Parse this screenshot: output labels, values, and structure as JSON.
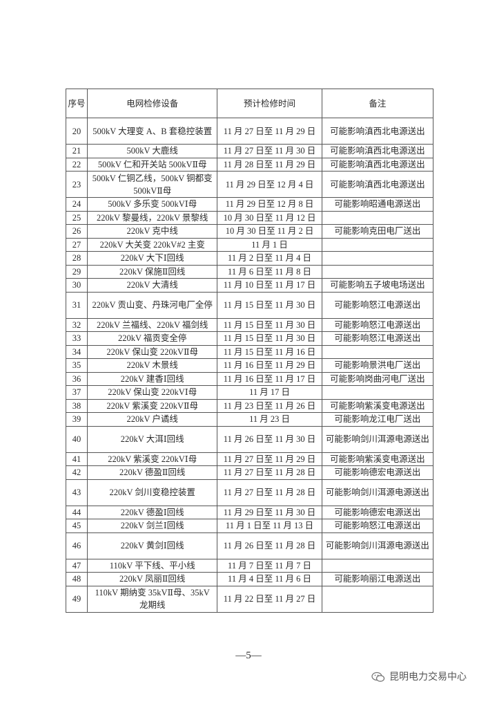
{
  "table": {
    "headers": [
      "序号",
      "电网检修设备",
      "预计检修时间",
      "备注"
    ],
    "rows": [
      {
        "no": "20",
        "device": "500kV 大理变 A、B 套稳控装置",
        "time": "11 月 27 日至 11 月 29 日",
        "note": "可能影响滇西北电源送出",
        "tall": true
      },
      {
        "no": "21",
        "device": "500kV 大鹿线",
        "time": "11 月 27 日至 11 月 30 日",
        "note": "可能影响滇西北电源送出"
      },
      {
        "no": "22",
        "device": "500kV 仁和开关站 500kVⅡ母",
        "time": "11 月 28 日至 11 月 29 日",
        "note": "可能影响滇西北电源送出"
      },
      {
        "no": "23",
        "device": "500kV 仁铜乙线，500kV 铜都变 500kVⅡ母",
        "time": "11 月 29 日至 12 月 4 日",
        "note": "可能影响滇西北电源送出",
        "tall": true
      },
      {
        "no": "24",
        "device": "500kV 多乐变 500kVⅠ母",
        "time": "11 月 29 日至 12 月 8 日",
        "note": "可能影响昭通电源送出"
      },
      {
        "no": "25",
        "device": "220kV 黎曼线，220kV 景黎线",
        "time": "10 月 30 日至 11 月 12 日",
        "note": ""
      },
      {
        "no": "26",
        "device": "220kV 克中线",
        "time": "10 月 30 日至 11 月 2 日",
        "note": "可能影响克田电厂送出"
      },
      {
        "no": "27",
        "device": "220kV 大关变 220kV#2 主变",
        "time": "11 月 1 日",
        "note": ""
      },
      {
        "no": "28",
        "device": "220kV 大下Ⅰ回线",
        "time": "11 月 2 日至 11 月 4 日",
        "note": ""
      },
      {
        "no": "29",
        "device": "220kV 保施Ⅱ回线",
        "time": "11 月 6 日至 11 月 8 日",
        "note": ""
      },
      {
        "no": "30",
        "device": "220kV 大清线",
        "time": "11 月 10 日至 11 月 17 日",
        "note": "可能影响五子坡电场送出"
      },
      {
        "no": "31",
        "device": "220kV 贡山变、丹珠河电厂全停",
        "time": "11 月 15 日至 11 月 30 日",
        "note": "可能影响怒江电源送出",
        "tall": true
      },
      {
        "no": "32",
        "device": "220kV 兰福线、220kV 福剑线",
        "time": "11 月 15 日至 11 月 30 日",
        "note": "可能影响怒江电源送出"
      },
      {
        "no": "33",
        "device": "220kV 福贡变全停",
        "time": "11 月 15 日至 11 月 30 日",
        "note": "可能影响怒江电源送出"
      },
      {
        "no": "34",
        "device": "220kV 保山变 220kVⅡ母",
        "time": "11 月 15 日至 11 月 16 日",
        "note": ""
      },
      {
        "no": "35",
        "device": "220kV 木景线",
        "time": "11 月 16 日至 11 月 29 日",
        "note": "可能影响景洪电厂送出"
      },
      {
        "no": "36",
        "device": "220kV 建香Ⅰ回线",
        "time": "11 月 16 日至 11 月 17 日",
        "note": "可能影响岗曲河电厂送出"
      },
      {
        "no": "37",
        "device": "220kV 保山变 220kVⅠ母",
        "time": "11 月 17 日",
        "note": ""
      },
      {
        "no": "38",
        "device": "220kV 紫溪变 220kVⅡ母",
        "time": "11 月 23 日至 11 月 26 日",
        "note": "可能影响紫溪变电源送出"
      },
      {
        "no": "39",
        "device": "220kV 户谲线",
        "time": "11 月 23 日",
        "note": "可能影响龙江电厂送出"
      },
      {
        "no": "40",
        "device": "220kV 大洱Ⅰ回线",
        "time": "11 月 26 日至 11 月 30 日",
        "note": "可能影响剑川洱源电源送出",
        "tall": true
      },
      {
        "no": "41",
        "device": "220kV 紫溪变 220kVⅠ母",
        "time": "11 月 27 日至 11 月 29 日",
        "note": "可能影响紫溪变电源送出"
      },
      {
        "no": "42",
        "device": "220kV 德盈Ⅱ回线",
        "time": "11 月 27 日至 11 月 28 日",
        "note": "可能影响德宏电源送出"
      },
      {
        "no": "43",
        "device": "220kV 剑川变稳控装置",
        "time": "11 月 27 日至 11 月 28 日",
        "note": "可能影响剑川洱源电源送出",
        "tall": true
      },
      {
        "no": "44",
        "device": "220kV 德盈Ⅰ回线",
        "time": "11 月 29 日至 11 月 30 日",
        "note": "可能影响德宏电源送出"
      },
      {
        "no": "45",
        "device": "220kV 剑兰Ⅰ回线",
        "time": "11 月 1 日至 11 月 13 日",
        "note": "可能影响怒江电源送出"
      },
      {
        "no": "46",
        "device": "220kV 黄剑Ⅰ回线",
        "time": "11 月 26 日至 11 月 28 日",
        "note": "可能影响剑川洱源电源送出",
        "tall": true
      },
      {
        "no": "47",
        "device": "110kV 平下线、平小线",
        "time": "11 月 7 日至 11 月 7 日",
        "note": ""
      },
      {
        "no": "48",
        "device": "220kV 凤丽Ⅱ回线",
        "time": "11 月 4 日至 11 月 6 日",
        "note": "可能影响丽江电源送出"
      },
      {
        "no": "49",
        "device": "110kV 期纳变 35kVⅡ母、35kV 龙期线",
        "time": "11 月 22 日至 11 月 27 日",
        "note": "",
        "tall": true
      }
    ]
  },
  "footer": {
    "page_number": "—5—"
  },
  "watermark": {
    "icon": "wechat-icon",
    "text": "昆明电力交易中心"
  }
}
